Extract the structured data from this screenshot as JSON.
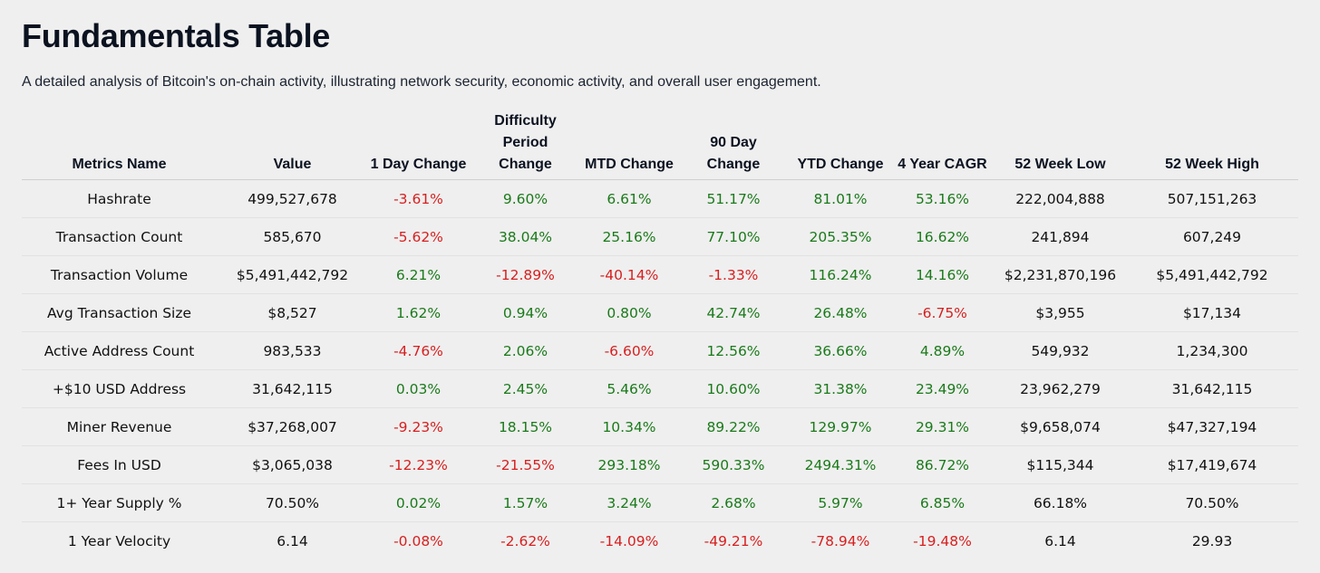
{
  "title": "Fundamentals Table",
  "subtitle": "A detailed analysis of Bitcoin's on-chain activity, illustrating network security, economic activity, and overall user engagement.",
  "colors": {
    "positive": "#1a7a1a",
    "negative": "#d81f1f",
    "background": "#efefef"
  },
  "columns": [
    "Metrics Name",
    "Value",
    "1 Day Change",
    "Difficulty Period Change",
    "MTD Change",
    "90 Day Change",
    "YTD Change",
    "4 Year CAGR",
    "52 Week Low",
    "52 Week High"
  ],
  "rows": [
    [
      "Hashrate",
      "499,527,678",
      "-3.61%",
      "9.60%",
      "6.61%",
      "51.17%",
      "81.01%",
      "53.16%",
      "222,004,888",
      "507,151,263"
    ],
    [
      "Transaction Count",
      "585,670",
      "-5.62%",
      "38.04%",
      "25.16%",
      "77.10%",
      "205.35%",
      "16.62%",
      "241,894",
      "607,249"
    ],
    [
      "Transaction Volume",
      "$5,491,442,792",
      "6.21%",
      "-12.89%",
      "-40.14%",
      "-1.33%",
      "116.24%",
      "14.16%",
      "$2,231,870,196",
      "$5,491,442,792"
    ],
    [
      "Avg Transaction Size",
      "$8,527",
      "1.62%",
      "0.94%",
      "0.80%",
      "42.74%",
      "26.48%",
      "-6.75%",
      "$3,955",
      "$17,134"
    ],
    [
      "Active Address Count",
      "983,533",
      "-4.76%",
      "2.06%",
      "-6.60%",
      "12.56%",
      "36.66%",
      "4.89%",
      "549,932",
      "1,234,300"
    ],
    [
      "+$10 USD Address",
      "31,642,115",
      "0.03%",
      "2.45%",
      "5.46%",
      "10.60%",
      "31.38%",
      "23.49%",
      "23,962,279",
      "31,642,115"
    ],
    [
      "Miner Revenue",
      "$37,268,007",
      "-9.23%",
      "18.15%",
      "10.34%",
      "89.22%",
      "129.97%",
      "29.31%",
      "$9,658,074",
      "$47,327,194"
    ],
    [
      "Fees In USD",
      "$3,065,038",
      "-12.23%",
      "-21.55%",
      "293.18%",
      "590.33%",
      "2494.31%",
      "86.72%",
      "$115,344",
      "$17,419,674"
    ],
    [
      "1+ Year Supply %",
      "70.50%",
      "0.02%",
      "1.57%",
      "3.24%",
      "2.68%",
      "5.97%",
      "6.85%",
      "66.18%",
      "70.50%"
    ],
    [
      "1 Year Velocity",
      "6.14",
      "-0.08%",
      "-2.62%",
      "-14.09%",
      "-49.21%",
      "-78.94%",
      "-19.48%",
      "6.14",
      "29.93"
    ]
  ]
}
